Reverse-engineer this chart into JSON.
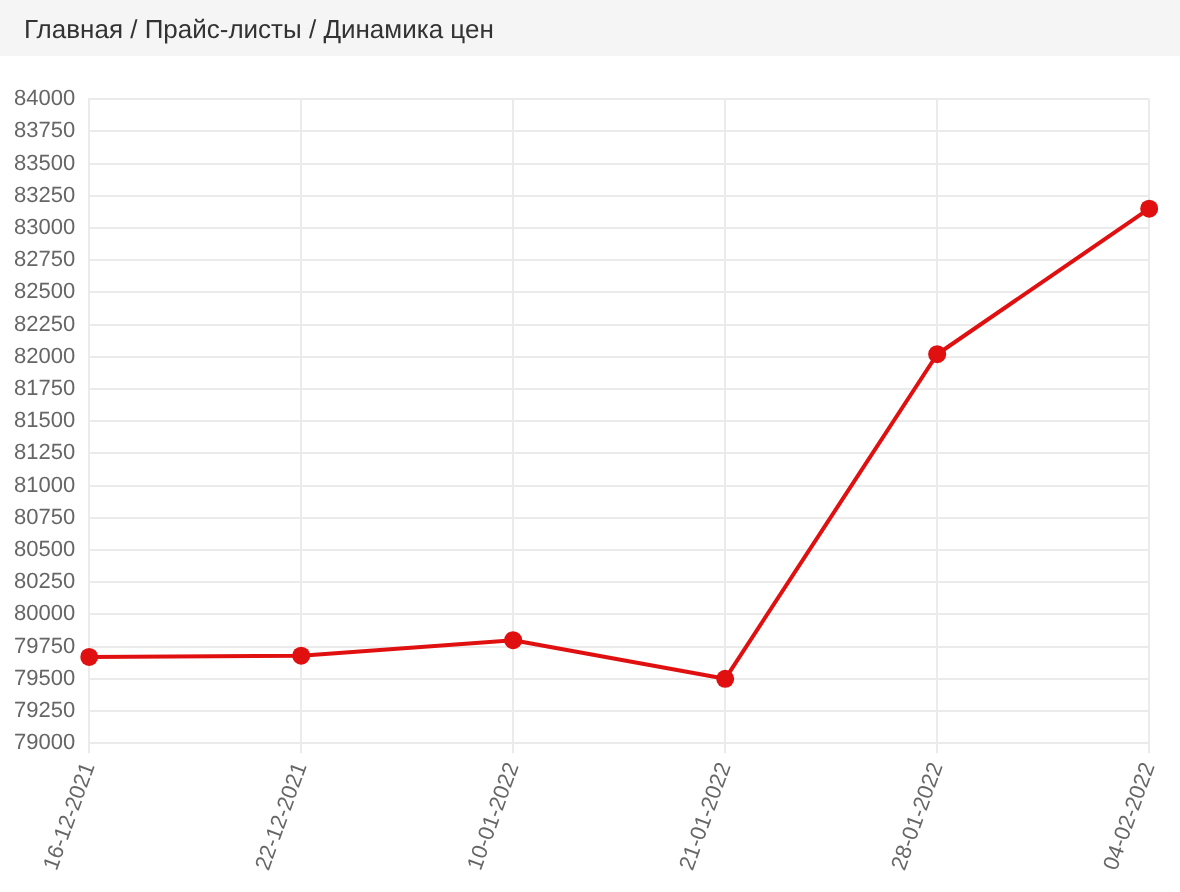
{
  "chart_data": {
    "type": "line",
    "title": "Главная / Прайс-листы / Динамика цен",
    "categories": [
      "16-12-2021",
      "22-12-2021",
      "10-01-2022",
      "21-01-2022",
      "28-01-2022",
      "04-02-2022"
    ],
    "values": [
      79670,
      79680,
      79800,
      79500,
      82020,
      83150
    ],
    "color": "#e01010",
    "ylim": [
      79000,
      84000
    ],
    "yticks": [
      79000,
      79250,
      79500,
      79750,
      80000,
      80250,
      80500,
      80750,
      81000,
      81250,
      81500,
      81750,
      82000,
      82250,
      82500,
      82750,
      83000,
      83250,
      83500,
      83750,
      84000
    ],
    "grid": true,
    "marker": "circle",
    "line_style": "solid"
  }
}
